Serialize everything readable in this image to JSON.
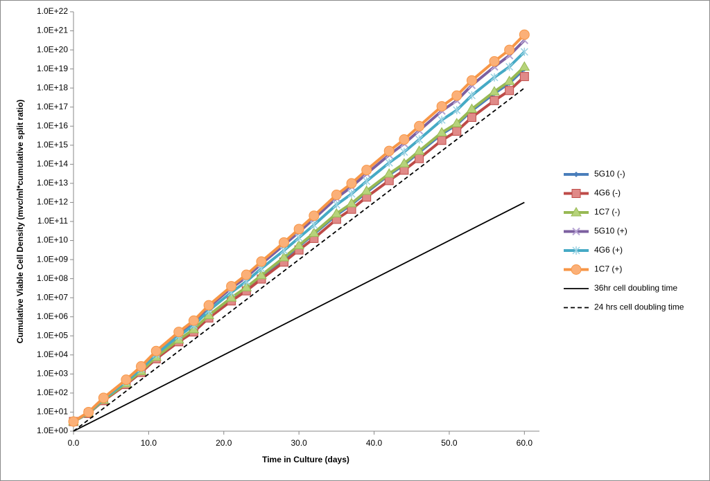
{
  "chart_data": {
    "type": "line",
    "y_label": "Cumulative Viable Cell Density (mvc/ml*cumulative split ratio)",
    "x_label": "Time in Culture (days)",
    "log_y": true,
    "grid": false,
    "legend": "right",
    "xlim": [
      0,
      62
    ],
    "ylim": [
      1,
      1e+22
    ],
    "xticks": [
      {
        "value": 0,
        "label": "0.0"
      },
      {
        "value": 10,
        "label": "10.0"
      },
      {
        "value": 20,
        "label": "20.0"
      },
      {
        "value": 30,
        "label": "30.0"
      },
      {
        "value": 40,
        "label": "40.0"
      },
      {
        "value": 50,
        "label": "50.0"
      },
      {
        "value": 60,
        "label": "60.0"
      }
    ],
    "yticks": [
      {
        "value": 1,
        "label": "1.0E+00"
      },
      {
        "value": 10.0,
        "label": "1.0E+01"
      },
      {
        "value": 100.0,
        "label": "1.0E+02"
      },
      {
        "value": 1000.0,
        "label": "1.0E+03"
      },
      {
        "value": 10000.0,
        "label": "1.0E+04"
      },
      {
        "value": 100000.0,
        "label": "1.0E+05"
      },
      {
        "value": 1000000.0,
        "label": "1.0E+06"
      },
      {
        "value": 10000000.0,
        "label": "1.0E+07"
      },
      {
        "value": 100000000.0,
        "label": "1.0E+08"
      },
      {
        "value": 1000000000.0,
        "label": "1.0E+09"
      },
      {
        "value": 10000000000.0,
        "label": "1.0E+10"
      },
      {
        "value": 100000000000.0,
        "label": "1.0E+11"
      },
      {
        "value": 1000000000000.0,
        "label": "1.0E+12"
      },
      {
        "value": 10000000000000.0,
        "label": "1.0E+13"
      },
      {
        "value": 100000000000000.0,
        "label": "1.0E+14"
      },
      {
        "value": 1000000000000000.0,
        "label": "1.0E+15"
      },
      {
        "value": 1e+16,
        "label": "1.0E+16"
      },
      {
        "value": 1e+17,
        "label": "1.0E+17"
      },
      {
        "value": 1e+18,
        "label": "1.0E+18"
      },
      {
        "value": 1e+19,
        "label": "1.0E+19"
      },
      {
        "value": 1e+20,
        "label": "1.0E+20"
      },
      {
        "value": 1e+21,
        "label": "1.0E+21"
      },
      {
        "value": 1e+22,
        "label": "1.0E+22"
      }
    ],
    "x": [
      0,
      2,
      4,
      7,
      9,
      11,
      14,
      16,
      18,
      21,
      23,
      25,
      28,
      30,
      32,
      35,
      37,
      39,
      42,
      44,
      46,
      49,
      51,
      53,
      56,
      58,
      60
    ],
    "series": [
      {
        "name": "5G10 (-)",
        "color": "#4a7ebb",
        "marker": "diamond",
        "values": [
          3.2,
          8.7,
          43,
          310,
          1300,
          7400,
          60000.0,
          210000.0,
          1100000.0,
          9300000.0,
          32000000.0,
          140000000.0,
          1100000000.0,
          5000000000.0,
          22000000000.0,
          220000000000.0,
          780000000000.0,
          3400000000000.0,
          28000000000000.0,
          95000000000000.0,
          420000000000000.0,
          3800000000000000.0,
          1.2e+16,
          6.5e+16,
          5.2e+17,
          1.8e+18,
          1e+19
        ]
      },
      {
        "name": "4G6 (-)",
        "color": "#be4b48",
        "marker": "square",
        "values": [
          3.2,
          8.5,
          40,
          280,
          1200,
          6300,
          49000.0,
          160000.0,
          870000.0,
          6800000.0,
          23000000.0,
          96000000.0,
          740000000.0,
          3200000000.0,
          13000000000.0,
          130000000000.0,
          440000000000.0,
          1900000000000.0,
          14000000000000.0,
          49000000000000.0,
          200000000000000.0,
          1800000000000000.0,
          5400000000000000.0,
          2.9e+16,
          2.2e+17,
          7.4e+17,
          4e+18
        ]
      },
      {
        "name": "1C7 (-)",
        "color": "#98b954",
        "marker": "triangle",
        "values": [
          3.2,
          8.7,
          44,
          320,
          1400,
          7800,
          63000.0,
          220000.0,
          1200000.0,
          10000000.0,
          35000000.0,
          150000000.0,
          1300000000.0,
          5600000000.0,
          25000000000.0,
          260000000000.0,
          890000000000.0,
          4000000000000.0,
          32000000000000.0,
          110000000000000.0,
          500000000000000.0,
          4600000000000000.0,
          1.4e+16,
          7.9e+16,
          6.5e+17,
          2.3e+18,
          1.3e+19
        ]
      },
      {
        "name": "5G10 (+)",
        "color": "#7d60a0",
        "marker": "x",
        "values": [
          3.2,
          9.8,
          54,
          470,
          2300,
          14000.0,
          130000.0,
          520000.0,
          3200000.0,
          32000000.0,
          120000000.0,
          600000000.0,
          5800000000.0,
          28000000000.0,
          140000000000.0,
          1700000000000.0,
          6600000000000.0,
          32000000000000.0,
          310000000000000.0,
          1200000000000000.0,
          5900000000000000.0,
          6.3e+16,
          2.2e+17,
          1.4e+18,
          1.3e+19,
          5.1e+19,
          3.2e+20
        ]
      },
      {
        "name": "4G6 (+)",
        "color": "#46aac5",
        "marker": "star",
        "values": [
          3.2,
          9.3,
          49,
          400,
          1900,
          11000.0,
          98000.0,
          360000.0,
          2100000.0,
          19000000.0,
          72000000.0,
          340000000.0,
          3000000000.0,
          14000000000.0,
          66000000000.0,
          760000000000.0,
          2800000000000.0,
          13000000000000.0,
          120000000000000.0,
          440000000000000.0,
          2000000000000000.0,
          2.1e+16,
          6.9e+16,
          4.1e+17,
          3.6e+18,
          1.3e+19,
          7.9e+19
        ]
      },
      {
        "name": "1C7 (+)",
        "color": "#f79646",
        "marker": "circle",
        "values": [
          3.2,
          10,
          56,
          500,
          2500,
          16000.0,
          160000.0,
          630000.0,
          4000000.0,
          40000000.0,
          160000000.0,
          790000000.0,
          7900000000.0,
          40000000000.0,
          200000000000.0,
          2500000000000.0,
          10000000000000.0,
          50000000000000.0,
          500000000000000.0,
          2000000000000000.0,
          1e+16,
          1.1e+17,
          4e+17,
          2.5e+18,
          2.5e+19,
          1e+20,
          6.3e+20
        ]
      },
      {
        "name": "36hr cell doubling time",
        "color": "#000000",
        "dash": false,
        "x": [
          0,
          60
        ],
        "values": [
          1,
          1000000000000.0
        ]
      },
      {
        "name": "24 hrs cell doubling time",
        "color": "#000000",
        "dash": true,
        "x": [
          0,
          60
        ],
        "values": [
          1,
          1e+18
        ]
      }
    ]
  }
}
